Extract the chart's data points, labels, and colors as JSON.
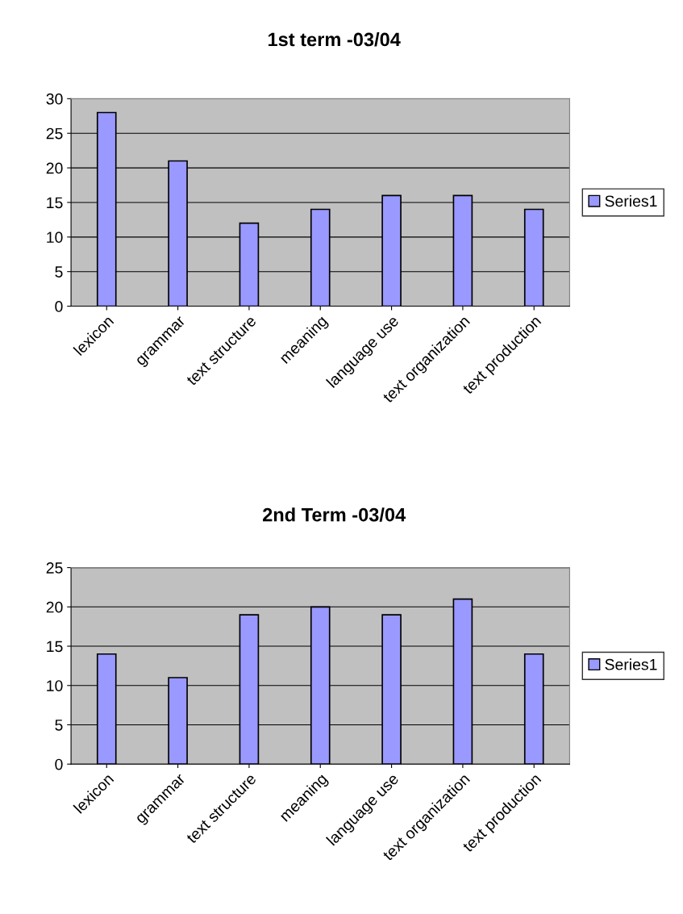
{
  "chart_data": [
    {
      "type": "bar",
      "title": "1st term -03/04",
      "categories": [
        "lexicon",
        "grammar",
        "text structure",
        "meaning",
        "language use",
        "text organization",
        "text production"
      ],
      "series": [
        {
          "name": "Series1",
          "color": "#9999ff",
          "values": [
            28,
            21,
            12,
            14,
            16,
            16,
            14
          ]
        }
      ],
      "ylim": [
        0,
        30
      ],
      "yticks": [
        0,
        5,
        10,
        15,
        20,
        25,
        30
      ],
      "grid": "y",
      "legend": "right"
    },
    {
      "type": "bar",
      "title": "2nd Term -03/04",
      "categories": [
        "lexicon",
        "grammar",
        "text structure",
        "meaning",
        "language use",
        "text organization",
        "text production"
      ],
      "series": [
        {
          "name": "Series1",
          "color": "#9999ff",
          "values": [
            14,
            11,
            19,
            20,
            19,
            21,
            14
          ]
        }
      ],
      "ylim": [
        0,
        25
      ],
      "yticks": [
        0,
        5,
        10,
        15,
        20,
        25
      ],
      "grid": "y",
      "legend": "right"
    }
  ]
}
